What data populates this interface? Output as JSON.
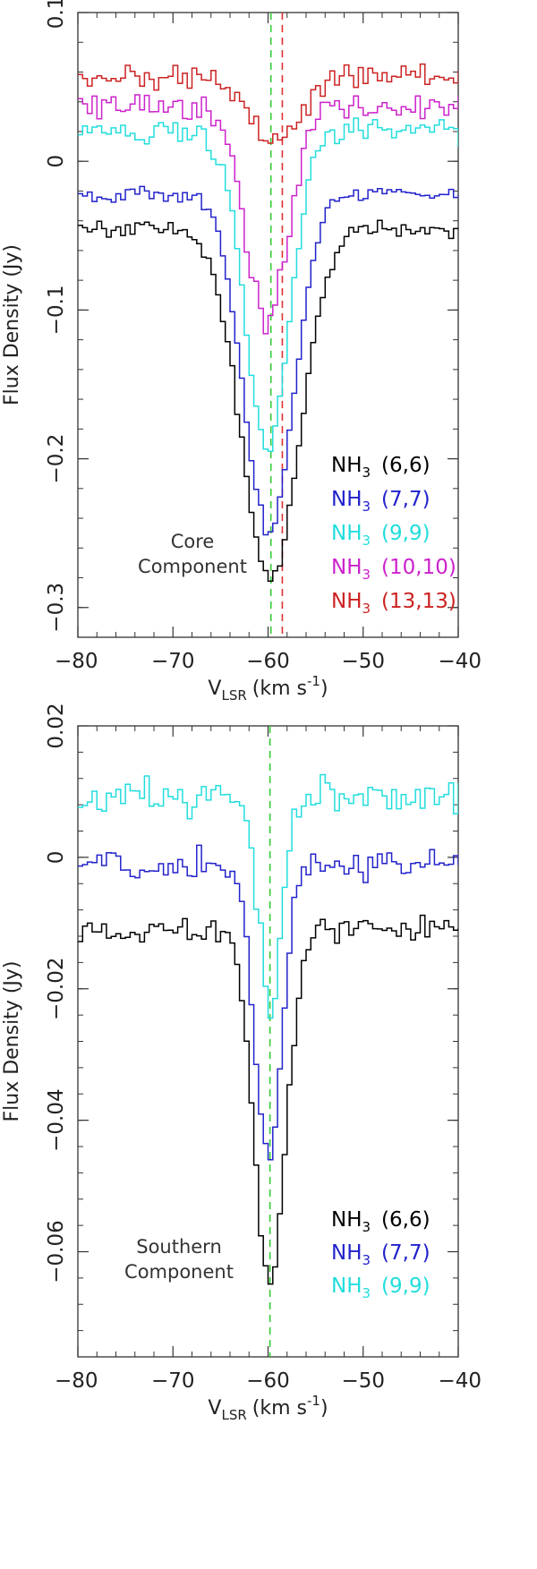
{
  "chart_data": [
    {
      "type": "line",
      "step": true,
      "panel_label_lines": [
        "Core",
        "Component"
      ],
      "xlabel": "V_LSR (km s^-1)",
      "xlabel_main": "V",
      "xlabel_sub": "LSR",
      "xlabel_unit": "(km s",
      "xlabel_sup": "-1",
      "xlabel_close": ")",
      "ylabel": "Flux Density (Jy)",
      "xlim": [
        -80,
        -40
      ],
      "ylim": [
        -0.32,
        0.1
      ],
      "xticks": [
        -80,
        -70,
        -60,
        -50,
        -40
      ],
      "xtick_labels": [
        "−80",
        "−70",
        "−60",
        "−50",
        "−40"
      ],
      "yticks": [
        0.1,
        0,
        -0.1,
        -0.2,
        -0.3
      ],
      "ytick_labels": [
        "0.1",
        "0",
        "−0.1",
        "−0.2",
        "−0.3"
      ],
      "vlines": [
        {
          "x": -59.7,
          "color": "#33cc33"
        },
        {
          "x": -58.5,
          "color": "#e03030"
        }
      ],
      "legend_position": "bottom-right",
      "series": [
        {
          "name": "NH3 (6,6)",
          "mol": "NH",
          "sub": "3",
          "trans": "(6,6)",
          "color": "#000000",
          "shape": {
            "base": -0.045,
            "depth": 0.237,
            "center": -60.0,
            "width": 3.0,
            "noise": 0.004
          }
        },
        {
          "name": "NH3 (7,7)",
          "mol": "NH",
          "sub": "3",
          "trans": "(7,7)",
          "color": "#2222cc",
          "shape": {
            "base": -0.022,
            "depth": 0.226,
            "center": -60.2,
            "width": 2.6,
            "noise": 0.004
          }
        },
        {
          "name": "NH3 (9,9)",
          "mol": "NH",
          "sub": "3",
          "trans": "(9,9)",
          "color": "#22dddd",
          "shape": {
            "base": 0.02,
            "depth": 0.212,
            "center": -60.3,
            "width": 2.3,
            "noise": 0.006
          }
        },
        {
          "name": "NH3 (10,10)",
          "mol": "NH",
          "sub": "3",
          "trans": "(10,10)",
          "color": "#cc22cc",
          "shape": {
            "base": 0.037,
            "depth": 0.145,
            "center": -60.4,
            "width": 2.2,
            "noise": 0.008
          }
        },
        {
          "name": "NH3 (13,13)",
          "mol": "NH",
          "sub": "3",
          "trans": "(13,13)",
          "color": "#cc2222",
          "shape": {
            "base": 0.057,
            "depth": 0.045,
            "center": -59.5,
            "width": 2.6,
            "noise": 0.006
          }
        }
      ]
    },
    {
      "type": "line",
      "step": true,
      "panel_label_lines": [
        "Southern",
        "Component"
      ],
      "xlabel": "V_LSR (km s^-1)",
      "xlabel_main": "V",
      "xlabel_sub": "LSR",
      "xlabel_unit": "(km s",
      "xlabel_sup": "-1",
      "xlabel_close": ")",
      "ylabel": "Flux Density (Jy)",
      "xlim": [
        -80,
        -40
      ],
      "ylim": [
        -0.076,
        0.02
      ],
      "xticks": [
        -80,
        -70,
        -60,
        -50,
        -40
      ],
      "xtick_labels": [
        "−80",
        "−70",
        "−60",
        "−50",
        "−40"
      ],
      "yticks": [
        0.02,
        0,
        -0.02,
        -0.04,
        -0.06
      ],
      "ytick_labels": [
        "0.02",
        "0",
        "−0.02",
        "−0.04",
        "−0.06"
      ],
      "vlines": [
        {
          "x": -59.8,
          "color": "#33cc33"
        }
      ],
      "legend_position": "bottom-right",
      "series": [
        {
          "name": "NH3 (6,6)",
          "mol": "NH",
          "sub": "3",
          "trans": "(6,6)",
          "color": "#000000",
          "shape": {
            "base": -0.011,
            "depth": 0.054,
            "center": -60.0,
            "width": 1.6,
            "noise": 0.0015
          }
        },
        {
          "name": "NH3 (7,7)",
          "mol": "NH",
          "sub": "3",
          "trans": "(7,7)",
          "color": "#2222cc",
          "shape": {
            "base": -0.001,
            "depth": 0.045,
            "center": -60.2,
            "width": 1.4,
            "noise": 0.0015
          }
        },
        {
          "name": "NH3 (9,9)",
          "mol": "NH",
          "sub": "3",
          "trans": "(9,9)",
          "color": "#22dddd",
          "shape": {
            "base": 0.009,
            "depth": 0.032,
            "center": -60.0,
            "width": 1.2,
            "noise": 0.0022
          }
        }
      ]
    }
  ]
}
